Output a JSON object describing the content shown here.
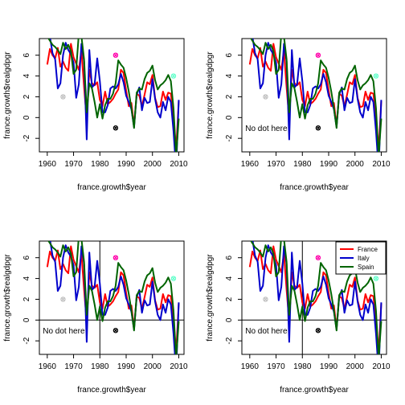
{
  "chart_data": [
    {
      "type": "line",
      "xlabel": "france.growth$year",
      "ylabel": "france.growth$realgdpgr",
      "x_ticks": [
        1960,
        1970,
        1980,
        1990,
        2000,
        2010
      ],
      "y_ticks": [
        -2,
        0,
        2,
        4,
        6
      ],
      "xlim": [
        1957,
        2012
      ],
      "ylim": [
        -3.3,
        7.6
      ],
      "annotation_text": "",
      "hline_y": null,
      "vline_x": null,
      "legend": null
    },
    {
      "type": "line",
      "xlabel": "france.growth$year",
      "ylabel": "france.growth$realgdpgr",
      "x_ticks": [
        1960,
        1970,
        1980,
        1990,
        2000,
        2010
      ],
      "y_ticks": [
        -2,
        0,
        2,
        4,
        6
      ],
      "xlim": [
        1957,
        2012
      ],
      "ylim": [
        -3.3,
        7.6
      ],
      "annotation_text": "No dot here",
      "hline_y": null,
      "vline_x": null,
      "legend": null
    },
    {
      "type": "line",
      "xlabel": "france.growth$year",
      "ylabel": "france.growth$realgdpgr",
      "x_ticks": [
        1960,
        1970,
        1980,
        1990,
        2000,
        2010
      ],
      "y_ticks": [
        -2,
        0,
        2,
        4,
        6
      ],
      "xlim": [
        1957,
        2012
      ],
      "ylim": [
        -3.3,
        7.6
      ],
      "annotation_text": "No dot here",
      "hline_y": 0,
      "vline_x": 1980,
      "legend": null
    },
    {
      "type": "line",
      "xlabel": "france.growth$year",
      "ylabel": "france.growth$realgdpgr",
      "x_ticks": [
        1960,
        1970,
        1980,
        1990,
        2000,
        2010
      ],
      "y_ticks": [
        -2,
        0,
        2,
        4,
        6
      ],
      "xlim": [
        1957,
        2012
      ],
      "ylim": [
        -3.3,
        7.6
      ],
      "annotation_text": "No dot here",
      "hline_y": 0,
      "vline_x": 1980,
      "legend": [
        "France",
        "Italy",
        "Spain"
      ]
    }
  ],
  "series": [
    {
      "name": "France",
      "color": "#ff0000",
      "x": [
        1960,
        1961,
        1962,
        1963,
        1964,
        1965,
        1966,
        1967,
        1968,
        1969,
        1970,
        1971,
        1972,
        1973,
        1974,
        1975,
        1976,
        1977,
        1978,
        1979,
        1980,
        1981,
        1982,
        1983,
        1984,
        1985,
        1986,
        1987,
        1988,
        1989,
        1990,
        1991,
        1992,
        1993,
        1994,
        1995,
        1996,
        1997,
        1998,
        1999,
        2000,
        2001,
        2002,
        2003,
        2004,
        2005,
        2006,
        2007,
        2008,
        2009,
        2010
      ],
      "y": [
        5.1,
        6.6,
        6.0,
        5.7,
        6.7,
        4.9,
        5.4,
        4.8,
        4.5,
        7.1,
        5.8,
        5.2,
        4.6,
        6.4,
        2.9,
        -0.2,
        4.6,
        3.3,
        3.1,
        3.4,
        1.7,
        1.1,
        2.5,
        1.3,
        1.5,
        1.8,
        2.3,
        2.7,
        4.6,
        4.3,
        2.6,
        1.1,
        1.4,
        -0.8,
        2.3,
        2.1,
        1.1,
        2.2,
        3.4,
        3.2,
        4.1,
        1.9,
        1.0,
        1.1,
        2.5,
        1.7,
        2.4,
        2.3,
        -0.1,
        -3.1,
        1.6
      ]
    },
    {
      "name": "Italy",
      "color": "#0000cc",
      "x": [
        1960,
        1961,
        1962,
        1963,
        1964,
        1965,
        1966,
        1967,
        1968,
        1969,
        1970,
        1971,
        1972,
        1973,
        1974,
        1975,
        1976,
        1977,
        1978,
        1979,
        1980,
        1981,
        1982,
        1983,
        1984,
        1985,
        1986,
        1987,
        1988,
        1989,
        1990,
        1991,
        1992,
        1993,
        1994,
        1995,
        1996,
        1997,
        1998,
        1999,
        2000,
        2001,
        2002,
        2003,
        2004,
        2005,
        2006,
        2007,
        2008,
        2009,
        2010
      ],
      "y": [
        8.2,
        7.8,
        6.2,
        5.6,
        2.8,
        3.3,
        6.0,
        7.2,
        6.5,
        6.1,
        5.3,
        1.9,
        3.2,
        7.1,
        5.4,
        -2.1,
        6.5,
        2.9,
        3.2,
        5.7,
        3.5,
        0.5,
        0.5,
        1.2,
        2.8,
        3.0,
        2.8,
        3.2,
        4.2,
        3.4,
        2.1,
        1.5,
        0.8,
        -0.9,
        2.2,
        2.9,
        0.7,
        1.9,
        1.4,
        1.5,
        3.7,
        1.8,
        0.5,
        0.0,
        1.5,
        0.7,
        2.0,
        1.5,
        -1.3,
        -5.0,
        1.7
      ]
    },
    {
      "name": "Spain",
      "color": "#006400",
      "x": [
        1960,
        1961,
        1962,
        1963,
        1964,
        1965,
        1966,
        1967,
        1968,
        1969,
        1970,
        1971,
        1972,
        1973,
        1974,
        1975,
        1976,
        1977,
        1978,
        1979,
        1980,
        1981,
        1982,
        1983,
        1984,
        1985,
        1986,
        1987,
        1988,
        1989,
        1990,
        1991,
        1992,
        1993,
        1994,
        1995,
        1996,
        1997,
        1998,
        1999,
        2000,
        2001,
        2002,
        2003,
        2004,
        2005,
        2006,
        2007,
        2008,
        2009,
        2010
      ],
      "y": [
        7.8,
        7.4,
        7.0,
        6.8,
        6.5,
        6.1,
        7.2,
        6.6,
        7.0,
        6.4,
        4.2,
        4.6,
        8.1,
        7.8,
        5.6,
        0.5,
        3.3,
        2.8,
        1.5,
        0.0,
        1.3,
        -0.1,
        1.2,
        1.8,
        1.8,
        2.3,
        3.3,
        5.5,
        5.1,
        4.8,
        3.8,
        2.5,
        0.9,
        -1.0,
        2.4,
        2.8,
        2.7,
        3.7,
        4.3,
        4.5,
        5.0,
        3.6,
        2.7,
        3.1,
        3.3,
        3.6,
        4.1,
        3.5,
        0.9,
        -3.7,
        -0.1
      ]
    }
  ],
  "points": [
    {
      "x": 1966,
      "y": 2.0,
      "color": "#c0c0c0"
    },
    {
      "x": 1986,
      "y": 6.0,
      "color": "#ff00aa"
    },
    {
      "x": 1986,
      "y": -1.0,
      "color": "#000000"
    },
    {
      "x": 2008,
      "y": 4.0,
      "color": "#66ffcc"
    }
  ]
}
